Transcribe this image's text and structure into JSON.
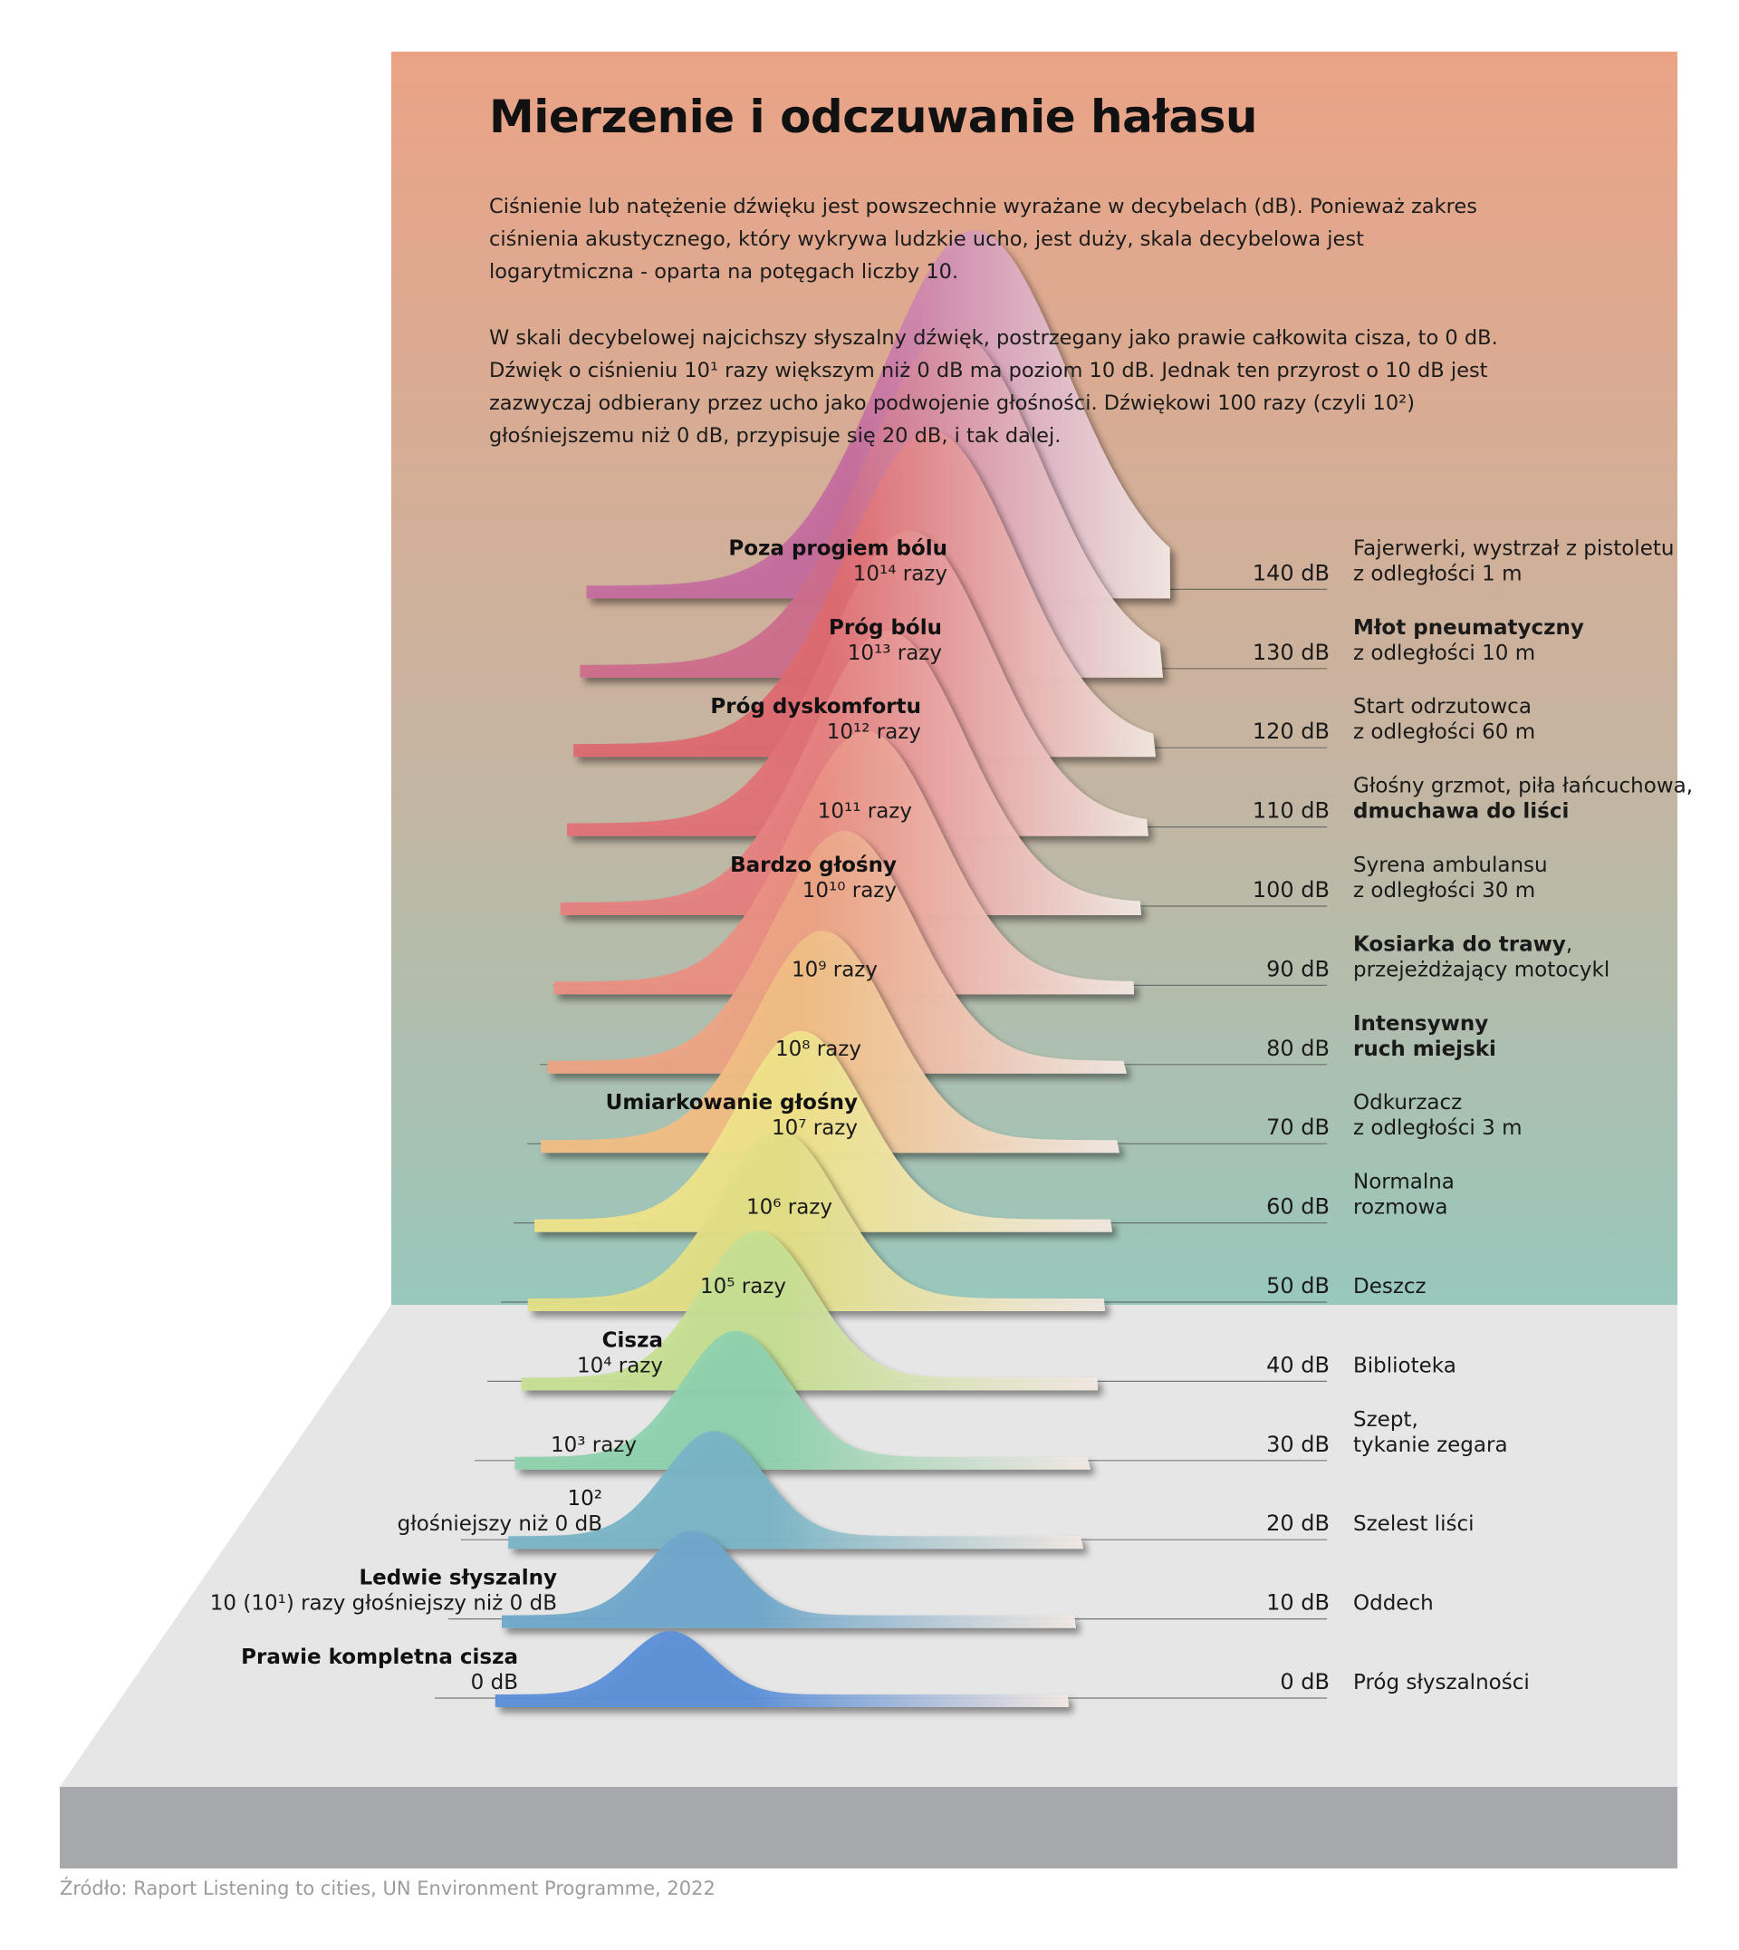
{
  "title": "Mierzenie i odczuwanie hałasu",
  "intro": {
    "p1": "Ciśnienie lub natężenie dźwięku jest powszechnie wyrażane w decybelach (dB). Ponieważ zakres ciśnienia akustycznego, który wykrywa ludzkie ucho, jest duży, skala decybelowa jest logarytmiczna - oparta na potęgach liczby 10.",
    "p2": "W skali decybelowej najcichszy słyszalny dźwięk, postrzegany jako prawie całkowita cisza, to 0 dB. Dźwięk o ciśnieniu 10¹ razy większym niż 0 dB ma poziom 10 dB. Jednak ten przyrost o 10 dB jest zazwyczaj odbierany przez ucho jako podwojenie głośności. Dźwiękowi 100 razy (czyli 10²) głośniejszemu niż 0 dB, przypisuje się 20 dB, i tak dalej."
  },
  "colors": {
    "bg_top": "#eba386",
    "bg_mid": "#c7b4a0",
    "bg_bottom": "#98c8bc",
    "floor": "#e6e6e6",
    "base": "#a7a8ac",
    "line": "#555555"
  },
  "levels": [
    {
      "db": "0 dB",
      "category": "Prawie kompletna cisza",
      "factor": "0 dB",
      "source_bold": "",
      "source": "Próg słyszalności",
      "color": "#5b8fd8"
    },
    {
      "db": "10 dB",
      "category": "Ledwie słyszalny",
      "factor": "10 (10¹) razy głośniejszy niż 0 dB",
      "source_bold": "",
      "source": "Oddech",
      "color": "#6fa7cb"
    },
    {
      "db": "20 dB",
      "category": "10²",
      "factor": "głośniejszy niż 0 dB",
      "source_bold": "",
      "source": "Szelest liści",
      "color": "#79b4c6"
    },
    {
      "db": "30 dB",
      "category": "",
      "factor": "10³ razy",
      "source_bold": "",
      "source": "Szept,\ntykanie zegara",
      "color": "#8fd1ae"
    },
    {
      "db": "40 dB",
      "category": "Cisza",
      "factor": "10⁴ razy",
      "source_bold": "",
      "source": "Biblioteka",
      "color": "#c6df92"
    },
    {
      "db": "50 dB",
      "category": "",
      "factor": "10⁵ razy",
      "source_bold": "",
      "source": "Deszcz",
      "color": "#e3df86"
    },
    {
      "db": "60 dB",
      "category": "",
      "factor": "10⁶ razy",
      "source_bold": "",
      "source": "Normalna\nrozmowa",
      "color": "#efe289"
    },
    {
      "db": "70 dB",
      "category": "Umiarkowanie głośny",
      "factor": "10⁷ razy",
      "source_bold": "",
      "source": "Odkurzacz\nz odległości 3 m",
      "color": "#f1bd84"
    },
    {
      "db": "80 dB",
      "category": "",
      "factor": "10⁸ razy",
      "source_bold": "Intensywny\nruch miejski",
      "source": "",
      "color": "#eda384"
    },
    {
      "db": "90 dB",
      "category": "",
      "factor": "10⁹ razy",
      "source_bold": "Kosiarka do trawy",
      "source": ",\nprzejeżdżający motocykl",
      "color": "#ea8f82"
    },
    {
      "db": "100 dB",
      "category": "Bardzo głośny",
      "factor": "10¹⁰ razy",
      "source_bold": "",
      "source": "Syrena ambulansu\nz odległości 30 m",
      "color": "#e58080"
    },
    {
      "db": "110 dB",
      "category": "",
      "factor": "10¹¹ razy",
      "source_bold": "dmuchawa do liści",
      "source": "Głośny grzmot, piła łańcuchowa,",
      "color": "#e07276"
    },
    {
      "db": "120 dB",
      "category": "Próg dyskomfortu",
      "factor": "10¹² razy",
      "source_bold": "",
      "source": "Start odrzutowca\nz odległości 60 m",
      "color": "#dd6a70"
    },
    {
      "db": "130 dB",
      "category": "Próg bólu",
      "factor": "10¹³ razy",
      "source_bold": "Młot pneumatyczny",
      "source": "z odległości 10 m",
      "color": "#cd6d8c"
    },
    {
      "db": "140 dB",
      "category": "Poza progiem bólu",
      "factor": "10¹⁴ razy",
      "source_bold": "",
      "source": "Fajerwerki, wystrzał z pistoletu\nz odległości 1 m",
      "color": "#c56c9e"
    }
  ],
  "source_note": "Źródło: Raport Listening to cities, UN Environment Programme, 2022"
}
